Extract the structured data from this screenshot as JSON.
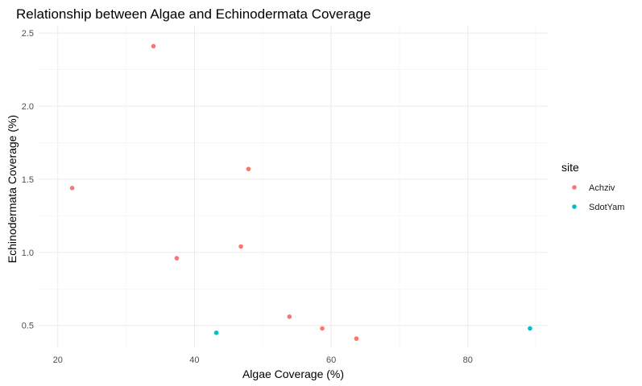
{
  "chart_data": {
    "type": "scatter",
    "title": "Relationship between Algae and Echinodermata Coverage",
    "xlabel": "Algae Coverage (%)",
    "ylabel": "Echinodermata Coverage (%)",
    "xlim": [
      17.2,
      91.7
    ],
    "ylim": [
      0.35,
      2.55
    ],
    "x_ticks": [
      20,
      40,
      60,
      80
    ],
    "y_ticks": [
      0.5,
      1.0,
      1.5,
      2.0,
      2.5
    ],
    "x_tick_labels": [
      "20",
      "40",
      "60",
      "80"
    ],
    "y_tick_labels": [
      "0.5",
      "1.0",
      "1.5",
      "2.0",
      "2.5"
    ],
    "grid": true,
    "legend": {
      "title": "site",
      "placement": "right"
    },
    "series": [
      {
        "name": "Achziv",
        "color": "#F8766D",
        "points": [
          {
            "x": 22.1,
            "y": 1.44
          },
          {
            "x": 34.0,
            "y": 2.41
          },
          {
            "x": 37.4,
            "y": 0.96
          },
          {
            "x": 46.8,
            "y": 1.04
          },
          {
            "x": 47.9,
            "y": 1.57
          },
          {
            "x": 53.9,
            "y": 0.56
          },
          {
            "x": 58.7,
            "y": 0.48
          },
          {
            "x": 63.7,
            "y": 0.41
          }
        ]
      },
      {
        "name": "SdotYam",
        "color": "#00BFC4",
        "points": [
          {
            "x": 43.2,
            "y": 0.45
          },
          {
            "x": 89.1,
            "y": 0.48
          }
        ]
      }
    ]
  }
}
